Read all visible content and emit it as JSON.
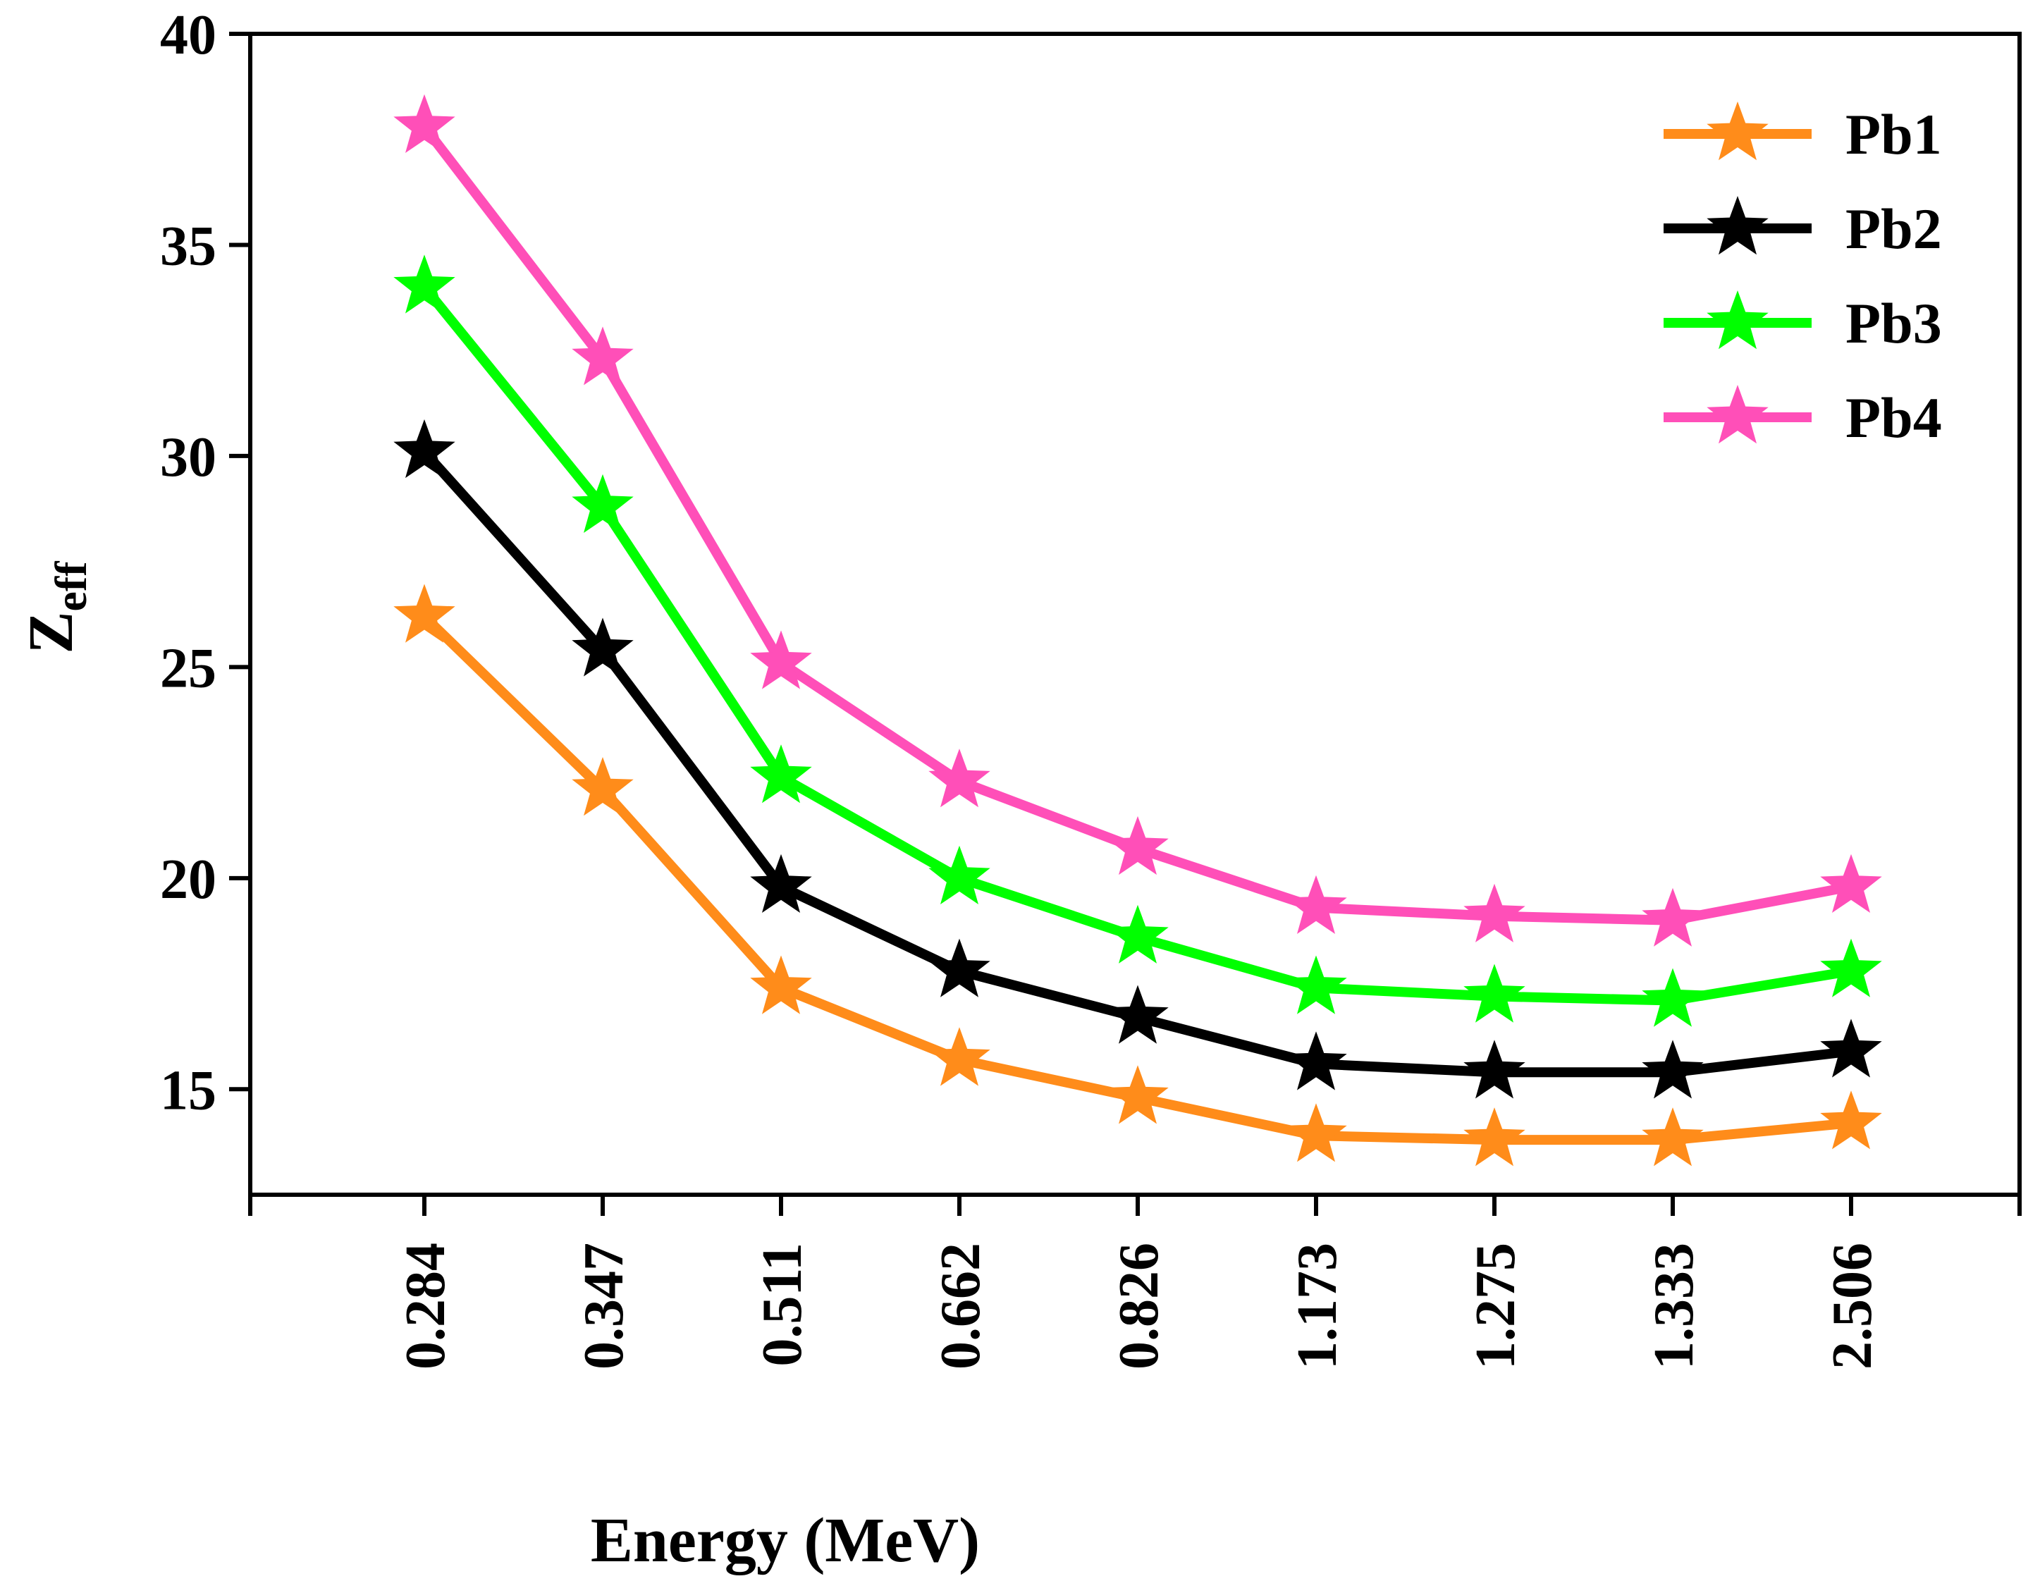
{
  "chart_data": {
    "type": "line",
    "xlabel": "Energy (MeV)",
    "ylabel_main": "Z",
    "ylabel_sub": "eff",
    "categories": [
      "0.284",
      "0.347",
      "0.511",
      "0.662",
      "0.826",
      "1.173",
      "1.275",
      "1.333",
      "2.506"
    ],
    "ylim": [
      12.5,
      40
    ],
    "yticks": [
      15,
      20,
      25,
      30,
      35,
      40
    ],
    "grid": false,
    "legend_position": "top-right",
    "marker": "star",
    "series": [
      {
        "name": "Pb1",
        "color": "#FF8C1A",
        "values": [
          26.2,
          22.1,
          17.4,
          15.7,
          14.8,
          13.9,
          13.8,
          13.8,
          14.2
        ]
      },
      {
        "name": "Pb2",
        "color": "#000000",
        "values": [
          30.1,
          25.4,
          19.8,
          17.8,
          16.7,
          15.6,
          15.4,
          15.4,
          15.9
        ]
      },
      {
        "name": "Pb3",
        "color": "#00FF00",
        "values": [
          34.0,
          28.8,
          22.4,
          20.0,
          18.6,
          17.4,
          17.2,
          17.1,
          17.8
        ]
      },
      {
        "name": "Pb4",
        "color": "#FF4FB8",
        "values": [
          37.8,
          32.3,
          25.1,
          22.3,
          20.7,
          19.3,
          19.1,
          19.0,
          19.8
        ]
      }
    ]
  }
}
